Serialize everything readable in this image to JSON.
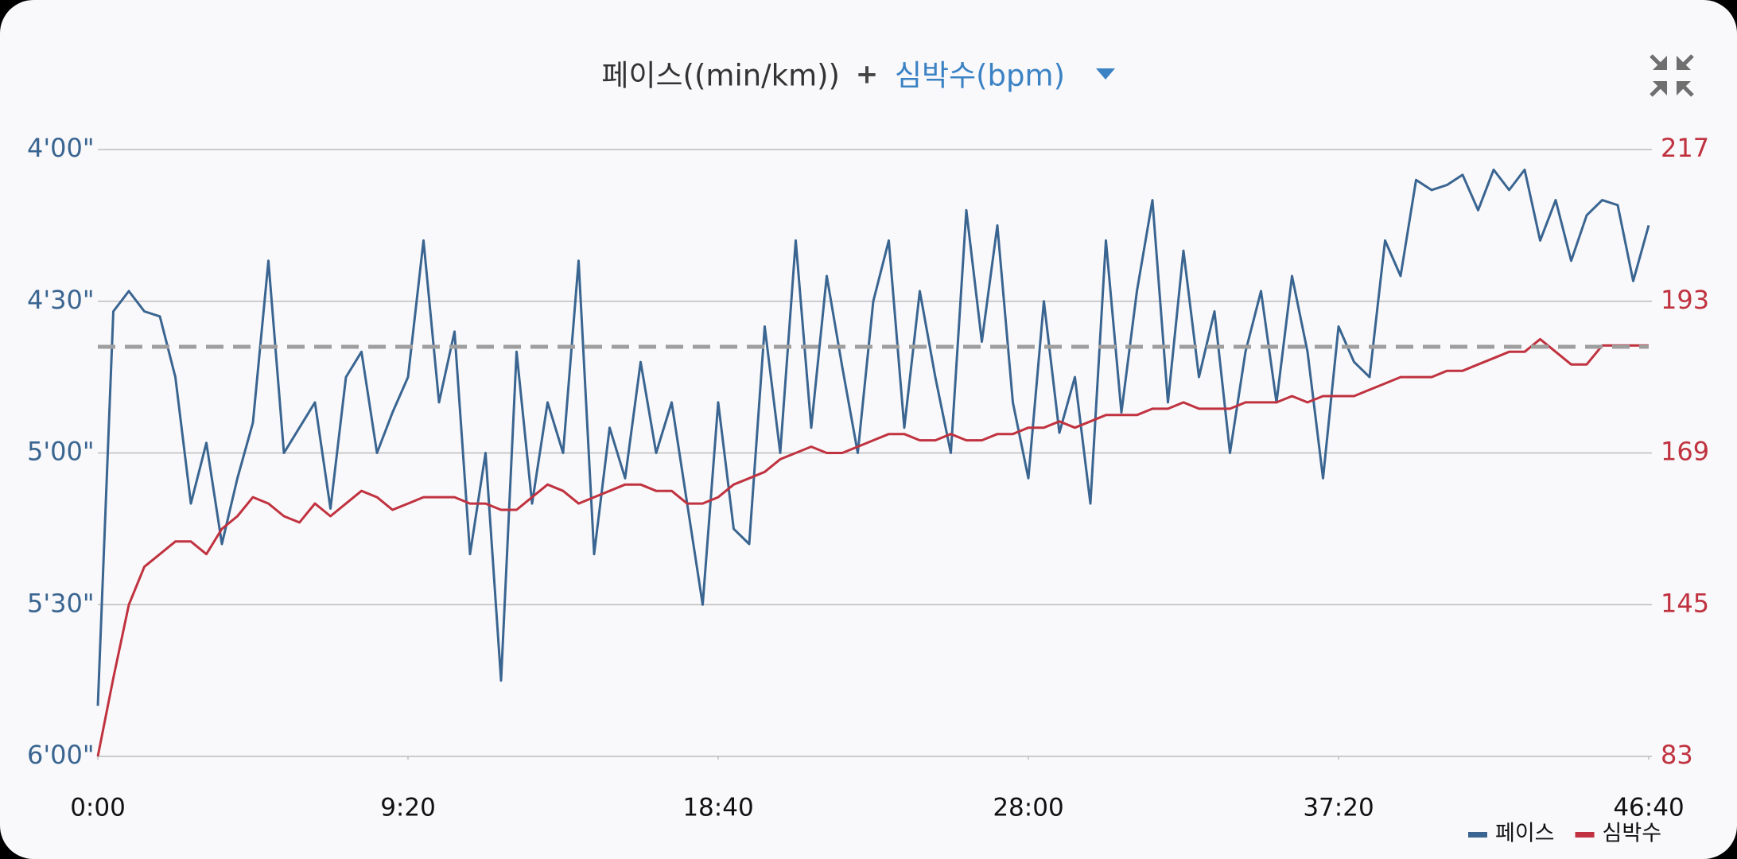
{
  "chart_data": {
    "type": "line",
    "title": "페이스((min/km))",
    "title_joiner": "+",
    "title_secondary": "심박수(bpm)",
    "x": [
      0,
      28,
      56,
      84,
      112,
      140,
      168,
      196,
      224,
      252,
      280,
      308,
      336,
      364,
      392,
      420,
      448,
      476,
      504,
      532,
      560,
      588,
      616,
      644,
      672,
      700,
      728,
      756,
      784,
      812,
      840,
      868,
      896,
      924,
      952,
      980,
      1008,
      1036,
      1064,
      1092,
      1120,
      1148,
      1176,
      1204,
      1232,
      1260,
      1288,
      1316,
      1344,
      1372,
      1400,
      1428,
      1456,
      1484,
      1512,
      1540,
      1568,
      1596,
      1624,
      1652,
      1680,
      1708,
      1736,
      1764,
      1792,
      1820,
      1848,
      1876,
      1904,
      1932,
      1960,
      1988,
      2016,
      2044,
      2072,
      2100,
      2128,
      2156,
      2184,
      2212,
      2240,
      2268,
      2296,
      2324,
      2352,
      2380,
      2408,
      2436,
      2464,
      2492,
      2520,
      2548,
      2576,
      2604,
      2632,
      2660,
      2688,
      2716,
      2744,
      2772,
      2800
    ],
    "xlim": [
      0,
      2800
    ],
    "xticks": [
      {
        "value": 0,
        "label": "0:00"
      },
      {
        "value": 560,
        "label": "9:20"
      },
      {
        "value": 1120,
        "label": "18:40"
      },
      {
        "value": 1680,
        "label": "28:00"
      },
      {
        "value": 2240,
        "label": "37:20"
      },
      {
        "value": 2800,
        "label": "46:40"
      }
    ],
    "ylim": [
      240,
      360
    ],
    "y_inverted": true,
    "yticks": [
      {
        "value": 240,
        "label": "4'00\""
      },
      {
        "value": 270,
        "label": "4'30\""
      },
      {
        "value": 300,
        "label": "5'00\""
      },
      {
        "value": 330,
        "label": "5'30\""
      },
      {
        "value": 360,
        "label": "6'00\""
      }
    ],
    "y2lim": [
      83,
      217
    ],
    "y2ticks": [
      83,
      145,
      169,
      193,
      217
    ],
    "grid": true,
    "legend": "bottom-right",
    "reference_line": {
      "value": 279,
      "color": "#9e9e9e",
      "axis": "y"
    },
    "series": [
      {
        "name": "페이스",
        "color": "#3a6591",
        "axis": "y",
        "values": [
          350,
          272,
          268,
          272,
          273,
          285,
          310,
          298,
          318,
          305,
          294,
          262,
          300,
          295,
          290,
          311,
          285,
          280,
          300,
          292,
          285,
          258,
          290,
          276,
          320,
          300,
          345,
          280,
          310,
          290,
          300,
          262,
          320,
          295,
          305,
          282,
          300,
          290,
          310,
          330,
          290,
          315,
          318,
          275,
          300,
          258,
          295,
          265,
          283,
          300,
          270,
          258,
          295,
          268,
          285,
          300,
          252,
          278,
          255,
          290,
          305,
          270,
          296,
          285,
          310,
          258,
          292,
          268,
          250,
          290,
          260,
          285,
          272,
          300,
          280,
          268,
          290,
          265,
          280,
          305,
          275,
          282,
          285,
          258,
          265,
          246,
          248,
          247,
          245,
          252,
          244,
          248,
          244,
          258,
          250,
          262,
          253,
          250,
          251,
          266,
          255
        ]
      },
      {
        "name": "심박수",
        "color": "#c0323f",
        "axis": "y2",
        "values": [
          83,
          115,
          145,
          151,
          153,
          155,
          155,
          153,
          157,
          159,
          162,
          161,
          159,
          158,
          161,
          159,
          161,
          163,
          162,
          160,
          161,
          162,
          162,
          162,
          161,
          161,
          160,
          160,
          162,
          164,
          163,
          161,
          162,
          163,
          164,
          164,
          163,
          163,
          161,
          161,
          162,
          164,
          165,
          166,
          168,
          169,
          170,
          169,
          169,
          170,
          171,
          172,
          172,
          171,
          171,
          172,
          171,
          171,
          172,
          172,
          173,
          173,
          174,
          173,
          174,
          175,
          175,
          175,
          176,
          176,
          177,
          176,
          176,
          176,
          177,
          177,
          177,
          178,
          177,
          178,
          178,
          178,
          179,
          180,
          181,
          181,
          181,
          182,
          182,
          183,
          184,
          185,
          185,
          187,
          185,
          183,
          183,
          186,
          186,
          186,
          186
        ]
      }
    ]
  }
}
